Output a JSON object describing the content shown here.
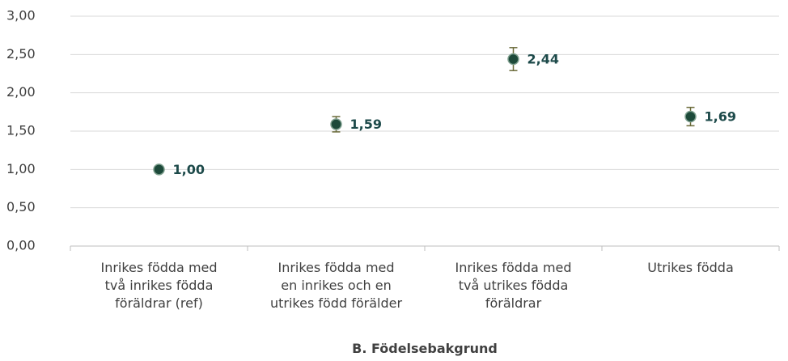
{
  "chart_data": {
    "type": "errorbar",
    "categories": [
      "Inrikes födda med\ntvå inrikes födda\nföräldrar (ref)",
      "Inrikes födda med\nen inrikes och en\nutrikes född förälder",
      "Inrikes födda med\ntvå utrikes födda\nföräldrar",
      "Utrikes födda"
    ],
    "values": [
      1.0,
      1.59,
      2.44,
      1.69
    ],
    "value_labels": [
      "1,00",
      "1,59",
      "2,44",
      "1,69"
    ],
    "errors": [
      0,
      0.1,
      0.15,
      0.12
    ],
    "color": "#1d4a3a",
    "error_color": "#6b6b3a",
    "x_label": "B. Födelsebakgrund",
    "ylim": [
      0,
      3
    ],
    "yticks": [
      {
        "value": 0,
        "label": "0,00"
      },
      {
        "value": 0.5,
        "label": "0,50"
      },
      {
        "value": 1,
        "label": "1,00"
      },
      {
        "value": 1.5,
        "label": "1,50"
      },
      {
        "value": 2,
        "label": "2,00"
      },
      {
        "value": 2.5,
        "label": "2,50"
      },
      {
        "value": 3,
        "label": "3,00"
      }
    ],
    "grid": true
  }
}
